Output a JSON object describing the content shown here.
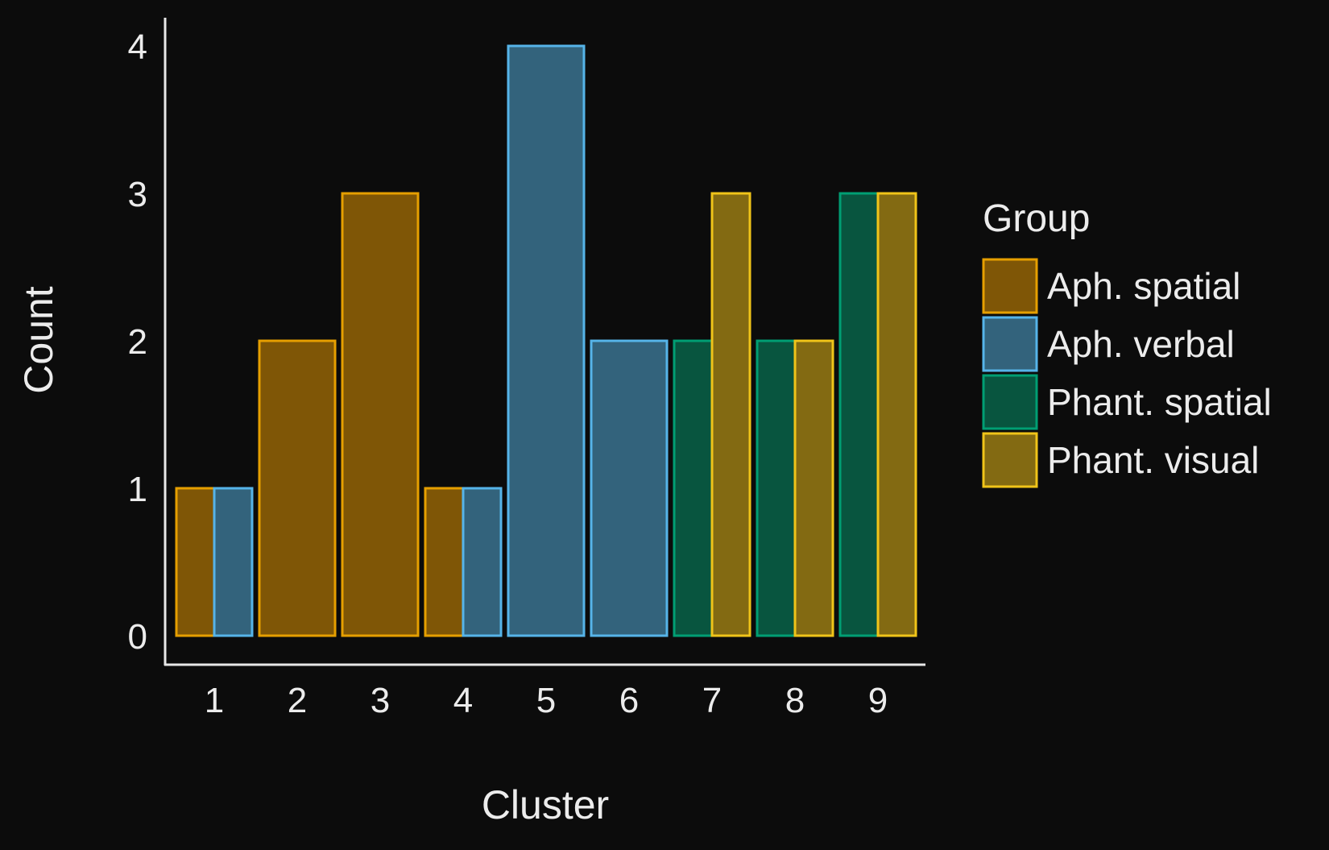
{
  "chart_data": {
    "type": "bar",
    "title": "",
    "xlabel": "Cluster",
    "ylabel": "Count",
    "categories": [
      "1",
      "2",
      "3",
      "4",
      "5",
      "6",
      "7",
      "8",
      "9"
    ],
    "yticks": [
      "0",
      "1",
      "2",
      "3",
      "4"
    ],
    "ylim": [
      0,
      4
    ],
    "grid": false,
    "legend": {
      "title": "Group",
      "position": "right"
    },
    "series": [
      {
        "name": "Aph. spatial",
        "fill": "#7f5606",
        "stroke": "#e69f00",
        "values": [
          1,
          2,
          3,
          1,
          0,
          0,
          0,
          0,
          0
        ]
      },
      {
        "name": "Aph. verbal",
        "fill": "#33637c",
        "stroke": "#56b4e9",
        "values": [
          1,
          0,
          0,
          1,
          4,
          2,
          0,
          0,
          0
        ]
      },
      {
        "name": "Phant. spatial",
        "fill": "#08553f",
        "stroke": "#009e73",
        "values": [
          0,
          0,
          0,
          0,
          0,
          0,
          2,
          2,
          3
        ]
      },
      {
        "name": "Phant. visual",
        "fill": "#836a12",
        "stroke": "#f0c419",
        "values": [
          0,
          0,
          0,
          0,
          0,
          0,
          3,
          2,
          3
        ]
      }
    ]
  },
  "colors": {
    "background": "#0c0c0c",
    "text": "#ececec",
    "axis": "#e8e8e8"
  }
}
